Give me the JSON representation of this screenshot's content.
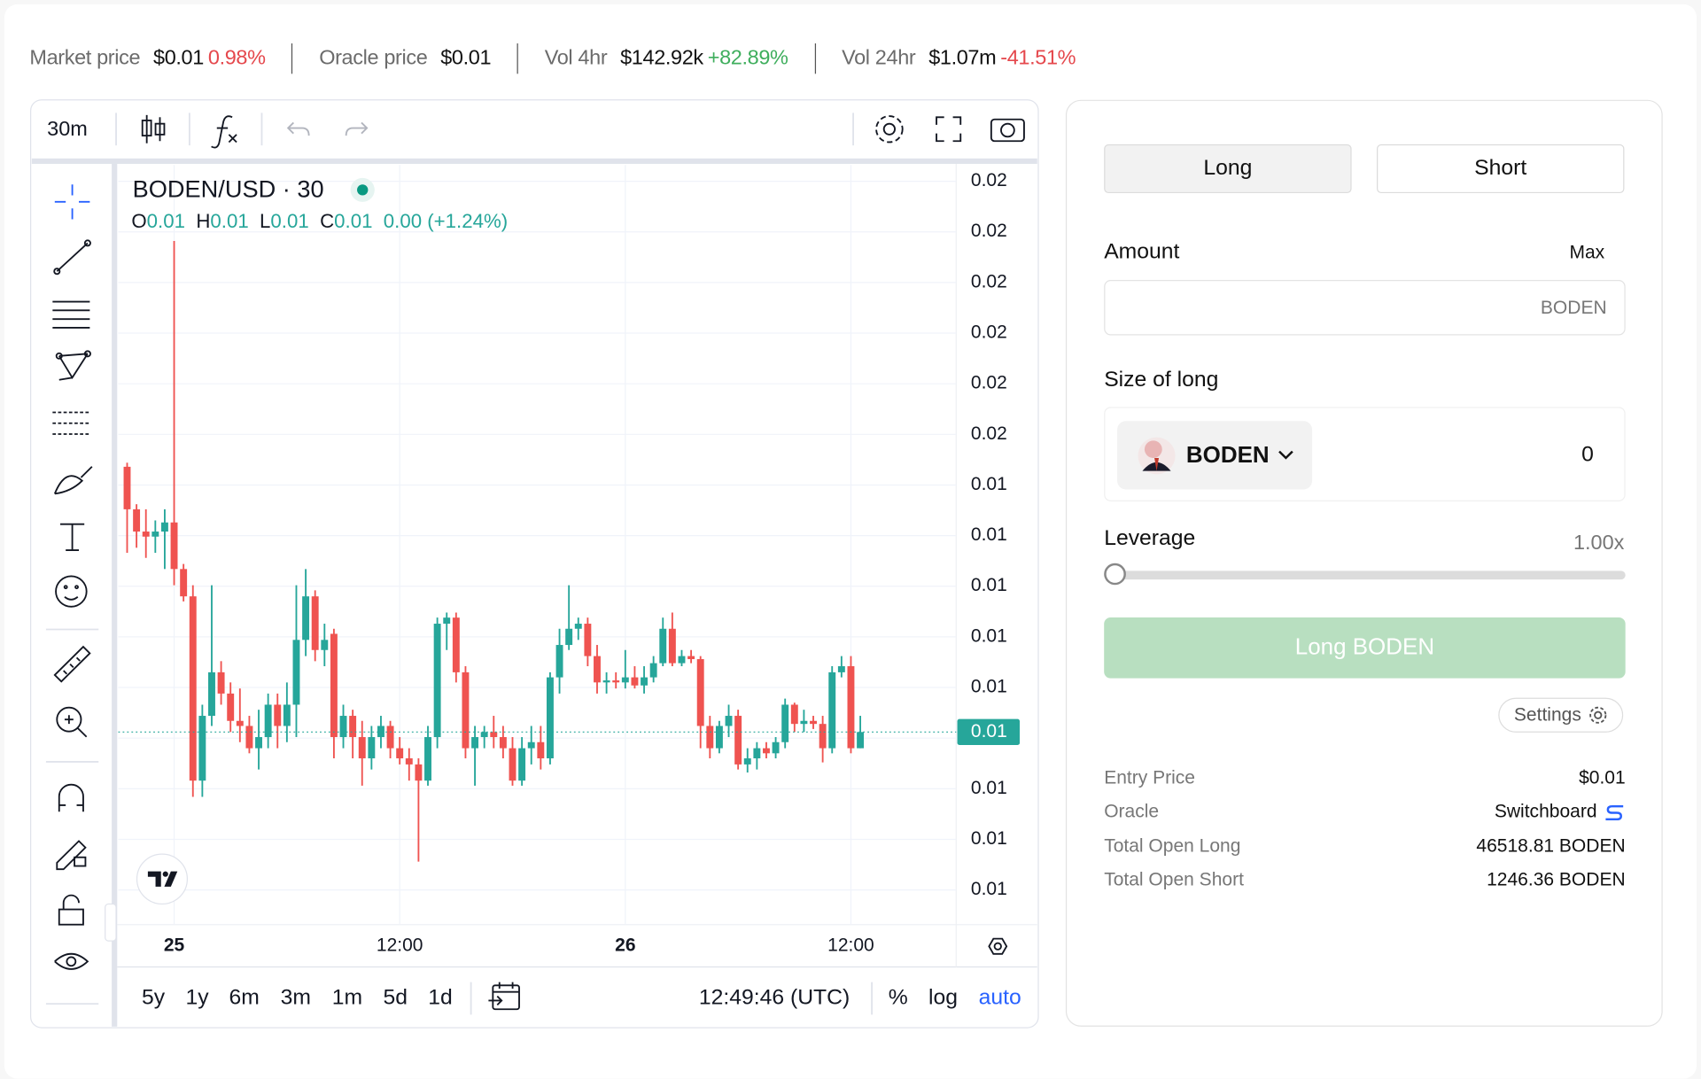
{
  "stats": [
    {
      "label": "Market price",
      "value": "$0.01",
      "change": "0.98%",
      "change_color": "#e5484d"
    },
    {
      "label": "Oracle price",
      "value": "$0.01"
    },
    {
      "label": "Vol 4hr",
      "value": "$142.92k",
      "change": "+82.89%",
      "change_color": "#3fae5d"
    },
    {
      "label": "Vol 24hr",
      "value": "$1.07m",
      "change": "-41.51%",
      "change_color": "#e5484d"
    }
  ],
  "toolbar": {
    "interval": "30m"
  },
  "chart_data": {
    "type": "candlestick",
    "symbol": "BODEN/USD · 30",
    "ohlc_legend": [
      {
        "key": "O",
        "value": "0.01"
      },
      {
        "key": "H",
        "value": "0.01"
      },
      {
        "key": "L",
        "value": "0.01"
      },
      {
        "key": "C",
        "value": "0.01"
      }
    ],
    "change": "0.00 (+1.24%)",
    "up_color": "#26a69a",
    "down_color": "#ef5350",
    "grid": true,
    "xlim": [
      -0.94,
      88.2
    ],
    "xticks": [
      {
        "value": 5,
        "label": "25"
      },
      {
        "value": 29,
        "label": "12:00"
      },
      {
        "value": 53,
        "label": "26"
      },
      {
        "value": 77,
        "label": "12:00"
      }
    ],
    "ylim": [
      0.010158,
      0.017661
    ],
    "yticks": [
      {
        "value": 0.0175,
        "label": "0.02"
      },
      {
        "value": 0.017,
        "label": "0.02"
      },
      {
        "value": 0.0165,
        "label": "0.02"
      },
      {
        "value": 0.016,
        "label": "0.02"
      },
      {
        "value": 0.0155,
        "label": "0.02"
      },
      {
        "value": 0.015,
        "label": "0.02"
      },
      {
        "value": 0.0145,
        "label": "0.01"
      },
      {
        "value": 0.014,
        "label": "0.01"
      },
      {
        "value": 0.0135,
        "label": "0.01"
      },
      {
        "value": 0.013,
        "label": "0.01"
      },
      {
        "value": 0.0125,
        "label": "0.01"
      },
      {
        "value": 0.012,
        "label": "0.01"
      },
      {
        "value": 0.0115,
        "label": "0.01"
      },
      {
        "value": 0.011,
        "label": "0.01"
      },
      {
        "value": 0.0105,
        "label": "0.01"
      }
    ],
    "price_label": "0.01",
    "candles": [
      [
        0.01468,
        0.01472,
        0.01383,
        0.01426
      ],
      [
        0.01426,
        0.01431,
        0.01388,
        0.01404
      ],
      [
        0.01404,
        0.01426,
        0.01378,
        0.01399
      ],
      [
        0.01399,
        0.01415,
        0.01383,
        0.01404
      ],
      [
        0.01404,
        0.01426,
        0.01367,
        0.01413
      ],
      [
        0.01413,
        0.01691,
        0.01351,
        0.01367
      ],
      [
        0.01367,
        0.01372,
        0.01335,
        0.0134
      ],
      [
        0.0134,
        0.01351,
        0.01142,
        0.01158
      ],
      [
        0.01158,
        0.01233,
        0.01142,
        0.01222
      ],
      [
        0.01222,
        0.01351,
        0.01212,
        0.01265
      ],
      [
        0.01265,
        0.01276,
        0.01233,
        0.01244
      ],
      [
        0.01244,
        0.01255,
        0.01206,
        0.01217
      ],
      [
        0.01217,
        0.01249,
        0.01196,
        0.01212
      ],
      [
        0.01212,
        0.01222,
        0.01185,
        0.0119
      ],
      [
        0.0119,
        0.01228,
        0.01169,
        0.01201
      ],
      [
        0.01201,
        0.01244,
        0.0119,
        0.01233
      ],
      [
        0.01233,
        0.01244,
        0.0119,
        0.01212
      ],
      [
        0.01212,
        0.01255,
        0.01196,
        0.01233
      ],
      [
        0.01233,
        0.01351,
        0.01201,
        0.01297
      ],
      [
        0.01297,
        0.01367,
        0.01281,
        0.0134
      ],
      [
        0.0134,
        0.01346,
        0.01276,
        0.01287
      ],
      [
        0.01287,
        0.01313,
        0.01271,
        0.01297
      ],
      [
        0.01303,
        0.01308,
        0.0118,
        0.01201
      ],
      [
        0.01201,
        0.01233,
        0.0119,
        0.01222
      ],
      [
        0.01222,
        0.01228,
        0.0118,
        0.01201
      ],
      [
        0.01201,
        0.01217,
        0.01153,
        0.0118
      ],
      [
        0.0118,
        0.01212,
        0.01169,
        0.01201
      ],
      [
        0.01201,
        0.01222,
        0.0119,
        0.01212
      ],
      [
        0.01212,
        0.01217,
        0.0118,
        0.0119
      ],
      [
        0.0119,
        0.01201,
        0.01174,
        0.0118
      ],
      [
        0.0118,
        0.0119,
        0.01158,
        0.01174
      ],
      [
        0.01174,
        0.0118,
        0.01078,
        0.01158
      ],
      [
        0.01158,
        0.01212,
        0.01153,
        0.01201
      ],
      [
        0.01201,
        0.01319,
        0.0119,
        0.01313
      ],
      [
        0.01313,
        0.01324,
        0.01287,
        0.01319
      ],
      [
        0.01319,
        0.01324,
        0.01255,
        0.01265
      ],
      [
        0.01265,
        0.01271,
        0.0118,
        0.0119
      ],
      [
        0.0119,
        0.01212,
        0.01153,
        0.01201
      ],
      [
        0.01201,
        0.01212,
        0.0119,
        0.01206
      ],
      [
        0.01206,
        0.01222,
        0.0119,
        0.01201
      ],
      [
        0.01201,
        0.01212,
        0.0118,
        0.0119
      ],
      [
        0.0119,
        0.01201,
        0.01153,
        0.01158
      ],
      [
        0.01158,
        0.01201,
        0.01153,
        0.0119
      ],
      [
        0.0119,
        0.01212,
        0.01174,
        0.01196
      ],
      [
        0.01196,
        0.01212,
        0.01169,
        0.0118
      ],
      [
        0.0118,
        0.01265,
        0.01174,
        0.0126
      ],
      [
        0.0126,
        0.01308,
        0.01244,
        0.01292
      ],
      [
        0.01292,
        0.01351,
        0.01287,
        0.01308
      ],
      [
        0.01308,
        0.01319,
        0.01297,
        0.01313
      ],
      [
        0.01313,
        0.01319,
        0.01271,
        0.01281
      ],
      [
        0.01281,
        0.01292,
        0.01244,
        0.01255
      ],
      [
        0.01255,
        0.01265,
        0.01244,
        0.01257
      ],
      [
        0.01257,
        0.01265,
        0.01249,
        0.01255
      ],
      [
        0.01255,
        0.01287,
        0.01249,
        0.0126
      ],
      [
        0.0126,
        0.01271,
        0.01249,
        0.01252
      ],
      [
        0.01252,
        0.01271,
        0.01244,
        0.0126
      ],
      [
        0.0126,
        0.01281,
        0.01255,
        0.01274
      ],
      [
        0.01274,
        0.01319,
        0.01271,
        0.01308
      ],
      [
        0.01308,
        0.01324,
        0.01271,
        0.01274
      ],
      [
        0.01274,
        0.01287,
        0.01271,
        0.01281
      ],
      [
        0.01281,
        0.01287,
        0.01274,
        0.01278
      ],
      [
        0.01278,
        0.01281,
        0.0119,
        0.01212
      ],
      [
        0.01212,
        0.01222,
        0.0118,
        0.0119
      ],
      [
        0.0119,
        0.01217,
        0.01185,
        0.01212
      ],
      [
        0.01212,
        0.01233,
        0.01201,
        0.01222
      ],
      [
        0.01222,
        0.01228,
        0.01169,
        0.01174
      ],
      [
        0.01174,
        0.0119,
        0.01166,
        0.0118
      ],
      [
        0.0118,
        0.01196,
        0.01169,
        0.0119
      ],
      [
        0.0119,
        0.01196,
        0.0118,
        0.01185
      ],
      [
        0.01185,
        0.01201,
        0.0118,
        0.01196
      ],
      [
        0.01196,
        0.01239,
        0.0119,
        0.01233
      ],
      [
        0.01233,
        0.01235,
        0.01206,
        0.01214
      ],
      [
        0.01214,
        0.01228,
        0.01206,
        0.01217
      ],
      [
        0.01217,
        0.01222,
        0.01209,
        0.01214
      ],
      [
        0.01214,
        0.01222,
        0.01176,
        0.0119
      ],
      [
        0.0119,
        0.01271,
        0.01185,
        0.01265
      ],
      [
        0.01265,
        0.01281,
        0.0126,
        0.01271
      ],
      [
        0.01271,
        0.01281,
        0.01185,
        0.0119
      ],
      [
        0.0119,
        0.01222,
        0.0119,
        0.01206
      ]
    ]
  },
  "bottom_bar": {
    "ranges": [
      "5y",
      "1y",
      "6m",
      "3m",
      "1m",
      "5d",
      "1d"
    ],
    "clock": "12:49:46 (UTC)",
    "percent": "%",
    "log": "log",
    "auto": "auto"
  },
  "trade_panel": {
    "tabs": [
      "Long",
      "Short"
    ],
    "amount_label": "Amount",
    "max": "Max",
    "amount_unit": "BODEN",
    "size_label": "Size of long",
    "token": "BODEN",
    "size_value": "0",
    "leverage_label": "Leverage",
    "leverage_value": "1.00x",
    "submit": "Long BODEN",
    "settings": "Settings",
    "info": [
      {
        "label": "Entry Price",
        "value": "$0.01"
      },
      {
        "label": "Oracle",
        "value": "Switchboard"
      },
      {
        "label": "Total Open Long",
        "value": "46518.81 BODEN"
      },
      {
        "label": "Total Open Short",
        "value": "1246.36 BODEN"
      }
    ]
  }
}
